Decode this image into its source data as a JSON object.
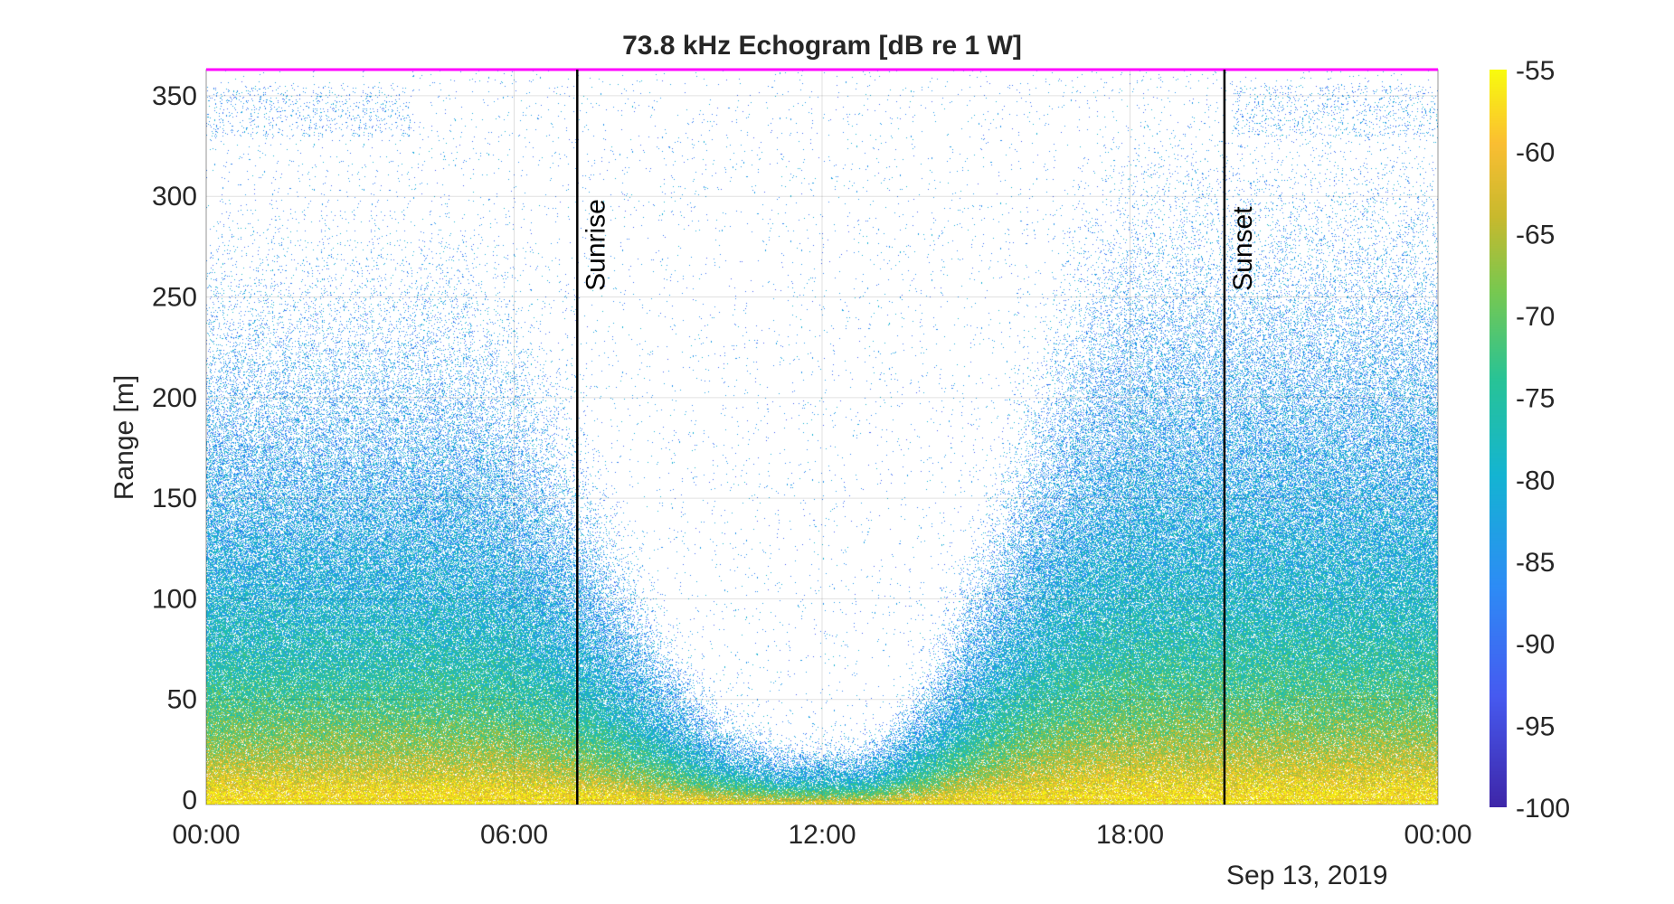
{
  "chart_data": {
    "type": "heatmap",
    "title": "73.8 kHz Echogram [dB re 1 W]",
    "ylabel": "Range [m]",
    "xlabel": "",
    "date_label": "Sep 13, 2019",
    "x_ticks": [
      "00:00",
      "06:00",
      "12:00",
      "18:00",
      "00:00"
    ],
    "x_range_hours": [
      0,
      24
    ],
    "y_ticks": [
      0,
      50,
      100,
      150,
      200,
      250,
      300,
      350
    ],
    "ylim": [
      0,
      363
    ],
    "grid": true,
    "colormap": "parula",
    "clim": [
      -100,
      -55
    ],
    "colorbar_ticks": [
      -55,
      -60,
      -65,
      -70,
      -75,
      -80,
      -85,
      -90,
      -95,
      -100
    ],
    "colorbar_position": "right",
    "annotations": [
      {
        "label": "Sunrise",
        "hour": 7.23
      },
      {
        "label": "Sunset",
        "hour": 19.84
      }
    ],
    "surface_line_color": "#ff00ff",
    "surface_range": 363
  }
}
